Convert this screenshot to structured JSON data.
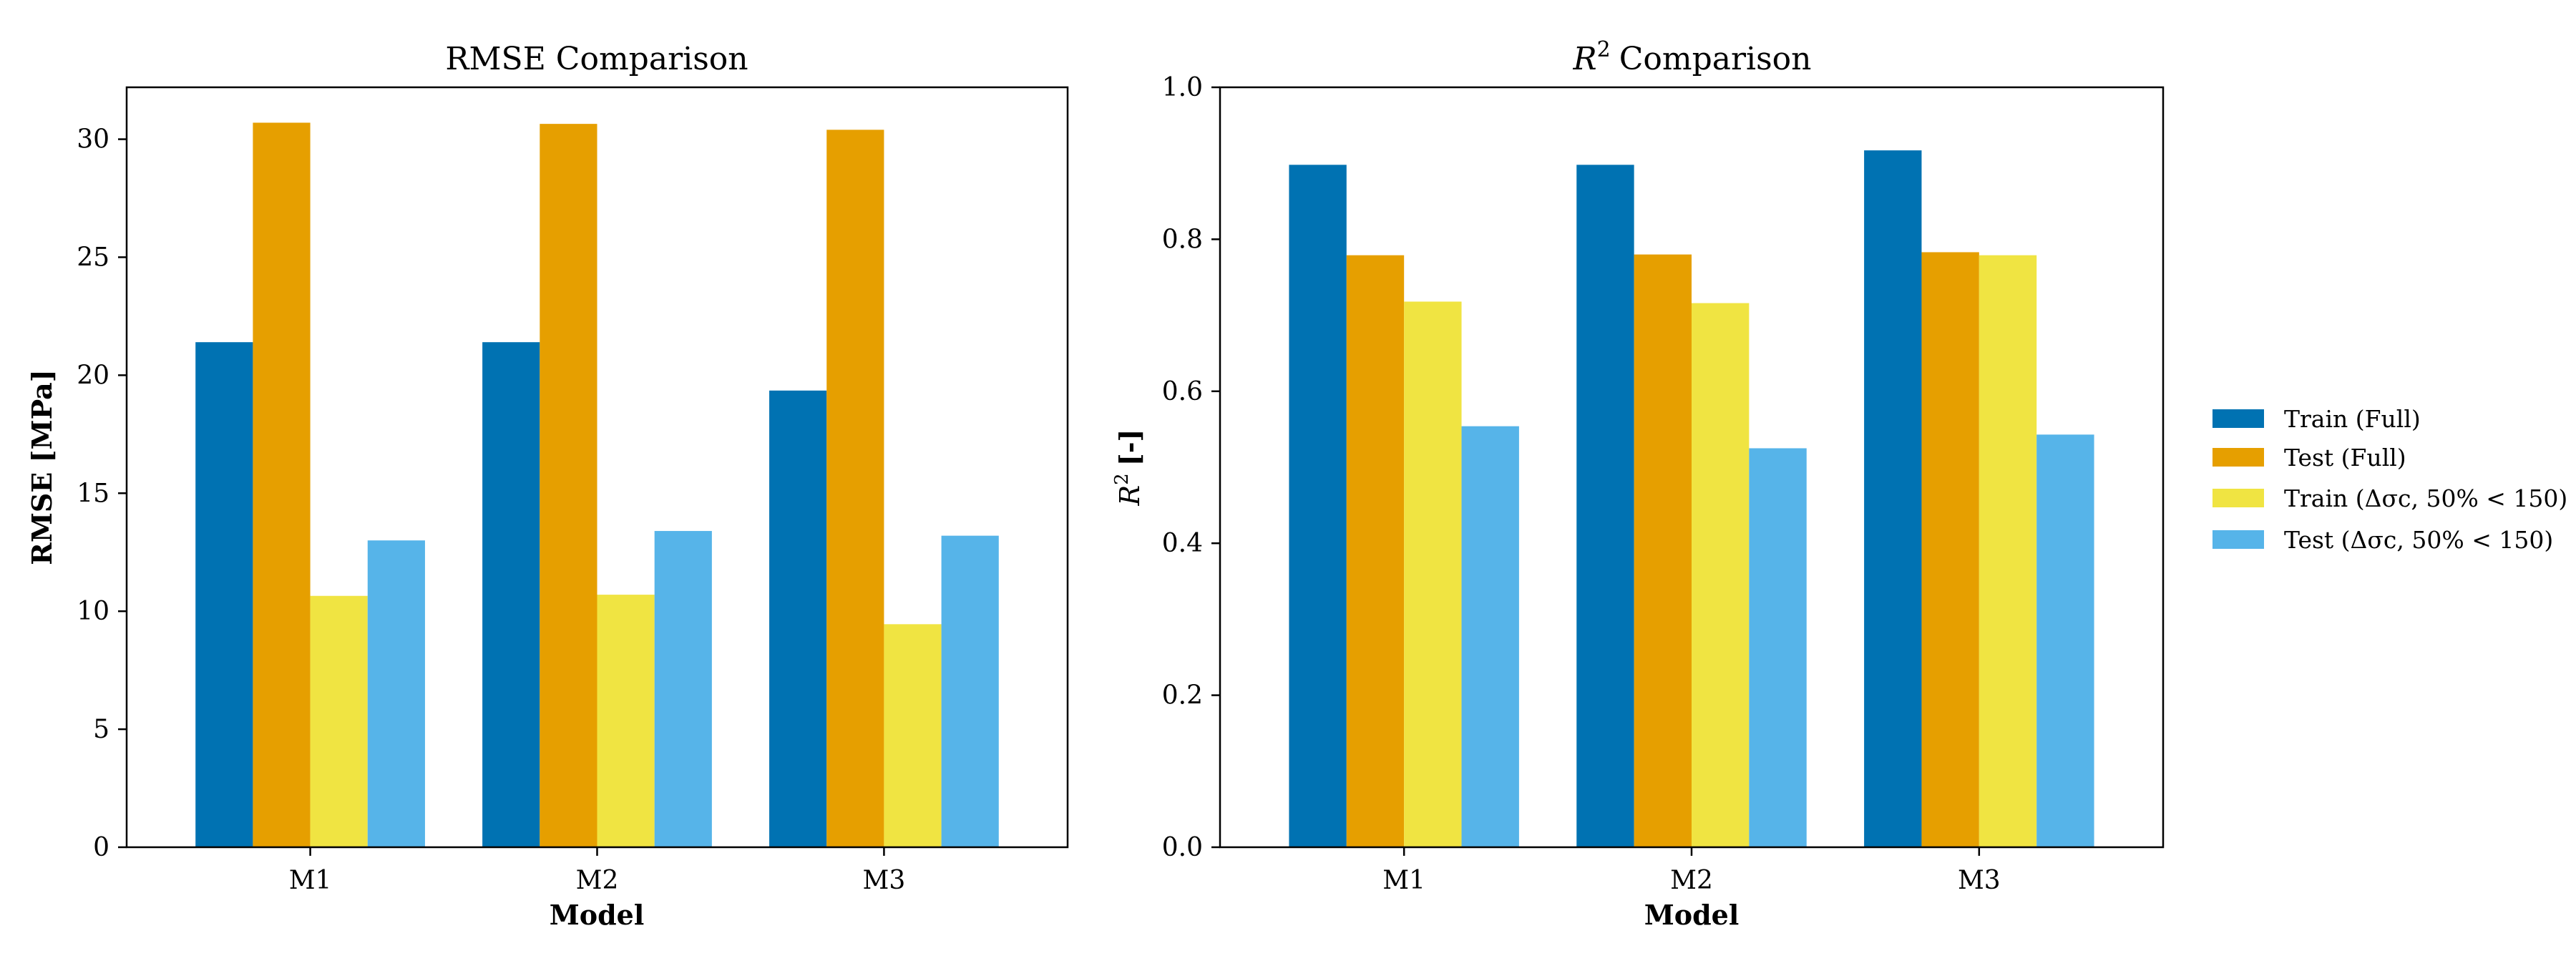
{
  "chart_data": [
    {
      "type": "bar",
      "title": "RMSE Comparison",
      "xlabel": "Model",
      "ylabel": "RMSE [MPa]",
      "categories": [
        "M1",
        "M2",
        "M3"
      ],
      "ylim": [
        0,
        32.2
      ],
      "yticks": [
        "0",
        "5",
        "10",
        "15",
        "20",
        "25",
        "30"
      ],
      "series": [
        {
          "name": "Train (Full)",
          "color": "#0072B2",
          "values": [
            21.4,
            21.4,
            19.35
          ]
        },
        {
          "name": "Test (Full)",
          "color": "#E69F00",
          "values": [
            30.7,
            30.65,
            30.4
          ]
        },
        {
          "name": "Train (Δσc, 50% < 150)",
          "color": "#F0E442",
          "values": [
            10.65,
            10.7,
            9.45
          ]
        },
        {
          "name": "Test (Δσc, 50% < 150)",
          "color": "#56B4E9",
          "values": [
            13.0,
            13.4,
            13.2
          ]
        }
      ]
    },
    {
      "type": "bar",
      "title": "R² Comparison",
      "title_parts": {
        "symbol": "R",
        "sup": "2",
        "rest": "Comparison"
      },
      "xlabel": "Model",
      "ylabel": "R² [-]",
      "ylabel_parts": {
        "symbol": "R",
        "sup": "2",
        "rest": "[-]"
      },
      "categories": [
        "M1",
        "M2",
        "M3"
      ],
      "ylim": [
        0,
        1.0
      ],
      "yticks": [
        "0.0",
        "0.2",
        "0.4",
        "0.6",
        "0.8",
        "1.0"
      ],
      "series": [
        {
          "name": "Train (Full)",
          "color": "#0072B2",
          "values": [
            0.898,
            0.898,
            0.917
          ]
        },
        {
          "name": "Test (Full)",
          "color": "#E69F00",
          "values": [
            0.779,
            0.78,
            0.783
          ]
        },
        {
          "name": "Train (Δσc, 50% < 150)",
          "color": "#F0E442",
          "values": [
            0.718,
            0.716,
            0.779
          ]
        },
        {
          "name": "Test (Δσc, 50% < 150)",
          "color": "#56B4E9",
          "values": [
            0.554,
            0.525,
            0.543
          ]
        }
      ]
    }
  ],
  "legend": {
    "placement": "right",
    "items": [
      {
        "label": "Train (Full)",
        "color": "#0072B2"
      },
      {
        "label": "Test (Full)",
        "color": "#E69F00"
      },
      {
        "label": "Train (Δσc, 50% < 150)",
        "color": "#F0E442"
      },
      {
        "label": "Test (Δσc, 50% < 150)",
        "color": "#56B4E9"
      }
    ]
  }
}
